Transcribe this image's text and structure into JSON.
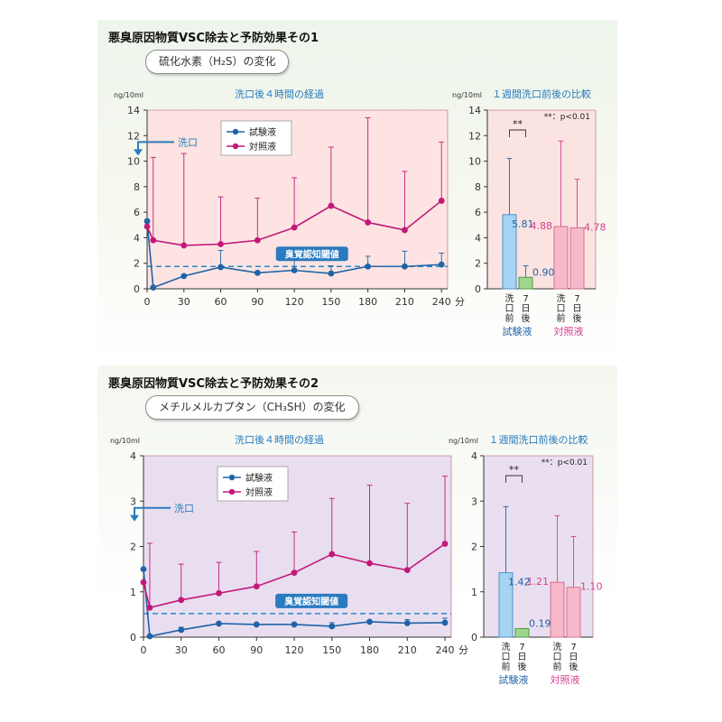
{
  "sections": [
    {
      "title": "悪臭原因物質VSC除去と予防効果その1",
      "pill": "硫化水素（H₂S）の変化",
      "chart_data": [
        {
          "type": "line",
          "title": "洗口後４時間の経過",
          "ylabel": "ng/10ml",
          "xlabel": "分",
          "ylim": [
            0,
            14
          ],
          "yticks": [
            0,
            2,
            4,
            6,
            8,
            10,
            12,
            14
          ],
          "xticks": [
            0,
            30,
            60,
            90,
            120,
            150,
            180,
            210,
            240
          ],
          "threshold": {
            "label": "臭覚認知閾値",
            "value": 1.75
          },
          "wash_marker": {
            "label": "洗口",
            "value": 11.5
          },
          "legend_position": "top-left",
          "series": [
            {
              "name": "試験液",
              "color": "#1f63a8",
              "x": [
                0,
                5,
                30,
                60,
                90,
                120,
                150,
                180,
                210,
                240
              ],
              "y": [
                5.3,
                0.1,
                1.0,
                1.7,
                1.25,
                1.45,
                1.2,
                1.75,
                1.75,
                1.9
              ],
              "err": [
                0,
                0,
                0,
                1.3,
                0,
                0.9,
                0.6,
                0.8,
                1.2,
                0.9
              ]
            },
            {
              "name": "対照液",
              "color": "#c2187a",
              "x": [
                0,
                5,
                30,
                60,
                90,
                120,
                150,
                180,
                210,
                240
              ],
              "y": [
                4.88,
                3.8,
                3.4,
                3.5,
                3.8,
                4.8,
                6.5,
                5.2,
                4.6,
                6.9
              ],
              "err": [
                0,
                6.5,
                7.2,
                3.7,
                3.3,
                3.9,
                4.6,
                8.2,
                4.6,
                4.6
              ]
            }
          ]
        },
        {
          "type": "bar",
          "title": "１週間洗口前後の比較",
          "ylabel": "ng/10ml",
          "ylim": [
            0,
            14
          ],
          "yticks": [
            0,
            2,
            4,
            6,
            8,
            10,
            12,
            14
          ],
          "significance": "**",
          "note": "**：p<0.01",
          "groups": [
            {
              "name": "試験液",
              "color": "#1f63a8",
              "bars": [
                {
                  "label": "洗口前",
                  "value": 5.81,
                  "value_label": "5.81",
                  "err": 4.4,
                  "fill": "#a6d4f2",
                  "stroke": "#4e92c9"
                },
                {
                  "label": "7日後",
                  "value": 0.9,
                  "value_label": "0.90",
                  "err": 0.9,
                  "fill": "#9ed68e",
                  "stroke": "#4f9a45"
                }
              ]
            },
            {
              "name": "対照液",
              "color": "#d43f8d",
              "bars": [
                {
                  "label": "洗口前",
                  "value": 4.88,
                  "value_label": "4.88",
                  "err": 6.7,
                  "fill": "#f7b9c9",
                  "stroke": "#d4718f"
                },
                {
                  "label": "7日後",
                  "value": 4.78,
                  "value_label": "4.78",
                  "err": 3.8,
                  "fill": "#f7b9c9",
                  "stroke": "#d4718f"
                }
              ]
            }
          ]
        }
      ]
    },
    {
      "title": "悪臭原因物質VSC除去と予防効果その2",
      "pill": "メチルメルカプタン（CH₃SH）の変化",
      "chart_data": [
        {
          "type": "line",
          "title": "洗口後４時間の経過",
          "ylabel": "ng/10ml",
          "xlabel": "分",
          "ylim": [
            0,
            4
          ],
          "yticks": [
            0,
            1,
            2,
            3,
            4
          ],
          "xticks": [
            0,
            30,
            60,
            90,
            120,
            150,
            180,
            210,
            240
          ],
          "threshold": {
            "label": "臭覚認知閾値",
            "value": 0.52
          },
          "wash_marker": {
            "label": "洗口",
            "value": 2.85
          },
          "legend_position": "top-left",
          "series": [
            {
              "name": "試験液",
              "color": "#1f63a8",
              "x": [
                0,
                5,
                30,
                60,
                90,
                120,
                150,
                180,
                210,
                240
              ],
              "y": [
                1.5,
                0.02,
                0.16,
                0.3,
                0.28,
                0.28,
                0.24,
                0.34,
                0.31,
                0.32
              ],
              "err": [
                0,
                0,
                0.06,
                0,
                0,
                0,
                0.08,
                0,
                0.08,
                0.1
              ]
            },
            {
              "name": "対照液",
              "color": "#c2187a",
              "x": [
                0,
                5,
                30,
                60,
                90,
                120,
                150,
                180,
                210,
                240
              ],
              "y": [
                1.21,
                0.65,
                0.82,
                0.97,
                1.12,
                1.42,
                1.83,
                1.63,
                1.48,
                2.06
              ],
              "err": [
                0,
                1.42,
                0.79,
                0.68,
                0.77,
                0.9,
                1.23,
                1.72,
                1.47,
                1.49
              ]
            }
          ]
        },
        {
          "type": "bar",
          "title": "１週間洗口前後の比較",
          "ylabel": "ng/10ml",
          "ylim": [
            0,
            4
          ],
          "yticks": [
            0,
            1,
            2,
            3,
            4
          ],
          "significance": "**",
          "note": "**：p<0.01",
          "groups": [
            {
              "name": "試験液",
              "color": "#1f63a8",
              "bars": [
                {
                  "label": "洗口前",
                  "value": 1.42,
                  "value_label": "1.42",
                  "err": 1.46,
                  "fill": "#a6d4f2",
                  "stroke": "#4e92c9"
                },
                {
                  "label": "7日後",
                  "value": 0.19,
                  "value_label": "0.19",
                  "err": 0.0,
                  "fill": "#9ed68e",
                  "stroke": "#4f9a45"
                }
              ]
            },
            {
              "name": "対照液",
              "color": "#d43f8d",
              "bars": [
                {
                  "label": "洗口前",
                  "value": 1.21,
                  "value_label": "1.21",
                  "err": 1.47,
                  "fill": "#f7b9c9",
                  "stroke": "#d4718f"
                },
                {
                  "label": "7日後",
                  "value": 1.1,
                  "value_label": "1.10",
                  "err": 1.12,
                  "fill": "#f7b9c9",
                  "stroke": "#d4718f"
                }
              ]
            }
          ]
        }
      ]
    }
  ]
}
